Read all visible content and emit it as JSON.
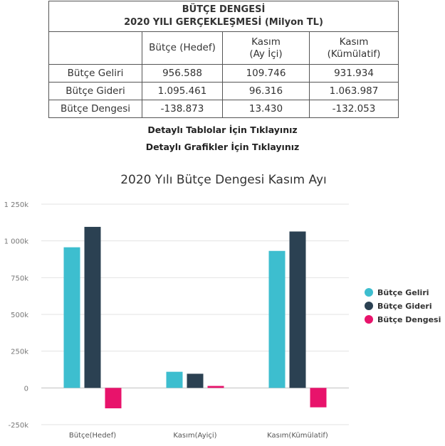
{
  "table": {
    "title": "BÜTÇE DENGESİ",
    "subtitle": "2020 YILI GERÇEKLEŞMESİ (Milyon TL)",
    "columns": [
      {
        "line1": "Bütçe (Hedef)",
        "line2": ""
      },
      {
        "line1": "Kasım",
        "line2": "(Ay İçi)"
      },
      {
        "line1": "Kasım",
        "line2": "(Kümülatif)"
      }
    ],
    "rows": [
      {
        "label": "Bütçe Geliri",
        "values": [
          "956.588",
          "109.746",
          "931.934"
        ]
      },
      {
        "label": "Bütçe Gideri",
        "values": [
          "1.095.461",
          "96.316",
          "1.063.987"
        ]
      },
      {
        "label": "Bütçe Dengesi",
        "values": [
          "-138.873",
          "13.430",
          "-132.053"
        ]
      }
    ]
  },
  "links": {
    "tables": "Detaylı Tablolar İçin Tıklayınız",
    "charts": "Detaylı Grafikler İçin Tıklayınız"
  },
  "chart_data": {
    "type": "bar",
    "title": "2020 Yılı Bütçe Dengesi Kasım Ayı",
    "categories": [
      "Bütçe(Hedef)",
      "Kasım(Ayiçi)",
      "Kasım(Kümülatif)"
    ],
    "series": [
      {
        "name": "Bütçe Geliri",
        "color": "#3dbecf",
        "values": [
          956588,
          109746,
          931934
        ]
      },
      {
        "name": "Bütçe Gideri",
        "color": "#2b4152",
        "values": [
          1095461,
          96316,
          1063987
        ]
      },
      {
        "name": "Bütçe Dengesi",
        "color": "#e8136b",
        "values": [
          -138873,
          13430,
          -132053
        ]
      }
    ],
    "yticks": [
      "1 250k",
      "1 000k",
      "750k",
      "500k",
      "250k",
      "0",
      "-250k"
    ],
    "ylim": [
      -250000,
      1250000
    ],
    "grid": true,
    "legend_position": "right"
  }
}
